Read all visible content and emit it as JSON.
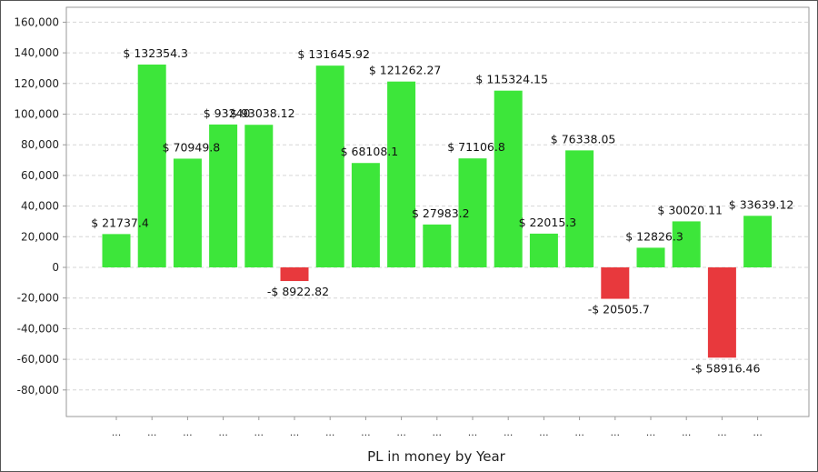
{
  "chart_data": {
    "type": "bar",
    "xlabel": "PL in money by Year",
    "ylabel": "",
    "ylim": [
      -100000,
      170000
    ],
    "yticks": [
      160000,
      140000,
      120000,
      100000,
      80000,
      60000,
      40000,
      20000,
      0,
      -20000,
      -40000,
      -60000,
      -80000
    ],
    "ytick_labels": [
      "160,000",
      "140,000",
      "120,000",
      "100,000",
      "80,000",
      "60,000",
      "40,000",
      "20,000",
      "0",
      "-20,000",
      "-40,000",
      "-60,000",
      "-80,000"
    ],
    "grid": true,
    "categories": [
      "...",
      "...",
      "...",
      "...",
      "...",
      "...",
      "...",
      "...",
      "...",
      "...",
      "...",
      "...",
      "...",
      "...",
      "...",
      "...",
      "...",
      "...",
      "..."
    ],
    "values": [
      21737.4,
      132354.3,
      70949.8,
      93240,
      93038.12,
      -8922.82,
      131645.92,
      68108.1,
      121262.27,
      27983.2,
      71106.8,
      115324.15,
      22015.3,
      76338.05,
      -20505.7,
      12826.3,
      30020.11,
      -58916.46,
      33639.12
    ],
    "data_labels": [
      "$ 21737.4",
      "$ 132354.3",
      "$ 70949.8",
      "$ 93240",
      "$ 93038.12",
      "-$ 8922.82",
      "$ 131645.92",
      "$ 68108.1",
      "$ 121262.27",
      "$ 27983.2",
      "$ 71106.8",
      "$ 115324.15",
      "$ 22015.3",
      "$ 76338.05",
      "-$ 20505.7",
      "$ 12826.3",
      "$ 30020.11",
      "-$ 58916.46",
      "$ 33639.12"
    ],
    "colors": {
      "positive": "#3de63a",
      "negative": "#e8393d",
      "grid": "#d6d6d6",
      "axis": "#999999"
    }
  }
}
